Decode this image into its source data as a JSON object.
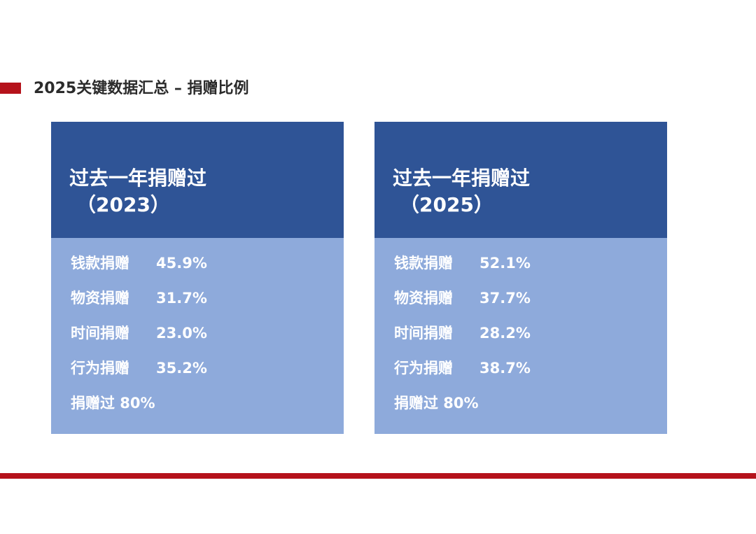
{
  "header": {
    "title": "2025关键数据汇总 – 捐赠比例"
  },
  "cards": [
    {
      "title": "过去一年捐赠过",
      "year": "（2023）",
      "stats": [
        {
          "label": "钱款捐赠",
          "value": "45.9%"
        },
        {
          "label": "物资捐赠",
          "value": "31.7%"
        },
        {
          "label": "时间捐赠",
          "value": "23.0%"
        },
        {
          "label": "行为捐赠",
          "value": "35.2%"
        }
      ],
      "total": "捐赠过 80%"
    },
    {
      "title": "过去一年捐赠过",
      "year": "（2025）",
      "stats": [
        {
          "label": "钱款捐赠",
          "value": "52.1%"
        },
        {
          "label": "物资捐赠",
          "value": "37.7%"
        },
        {
          "label": "时间捐赠",
          "value": "28.2%"
        },
        {
          "label": "行为捐赠",
          "value": "38.7%"
        }
      ],
      "total": "捐赠过 80%"
    }
  ],
  "colors": {
    "accent": "#b5121b",
    "header_blue": "#2f5496",
    "body_blue": "#8eaadb"
  }
}
